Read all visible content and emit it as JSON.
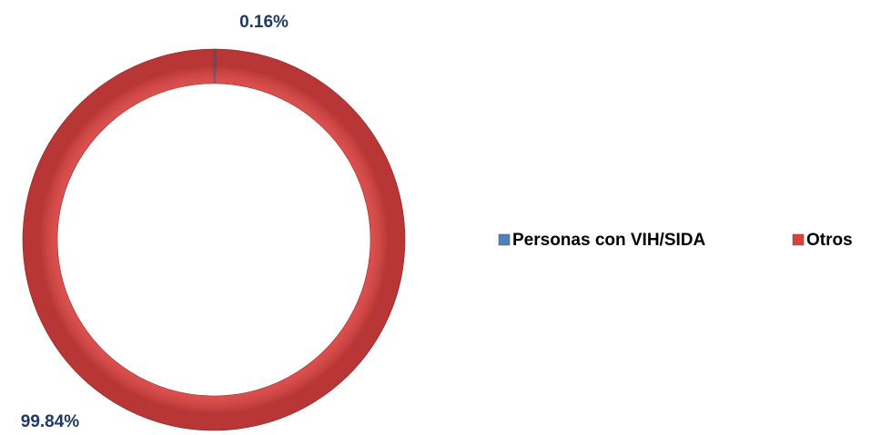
{
  "chart_data": {
    "type": "donut",
    "categories": [
      "Personas con VIH/SIDA",
      "Otros"
    ],
    "values": [
      0.16,
      99.84
    ],
    "value_labels": [
      "0.16%",
      "99.84%"
    ],
    "colors": [
      "#4f81bd",
      "#d9413f"
    ],
    "legend": "right"
  }
}
